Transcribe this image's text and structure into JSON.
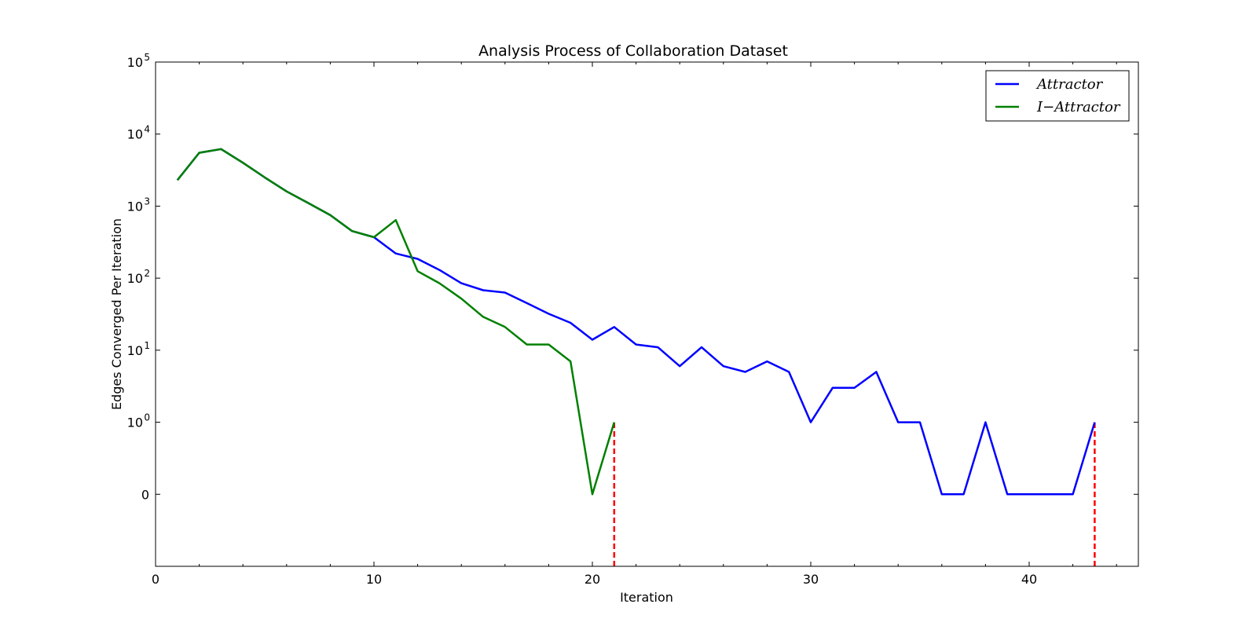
{
  "chart_data": {
    "type": "line",
    "title": "Analysis Process of Collaboration Dataset",
    "xlabel": "Iteration",
    "ylabel": "Edges Converged Per Iteration",
    "xlim": [
      0,
      45
    ],
    "xticks": [
      0,
      10,
      20,
      30,
      40
    ],
    "xtick_labels": [
      "0",
      "10",
      "20",
      "30",
      "40"
    ],
    "yscale": "symlog",
    "ylim": [
      -1,
      100000
    ],
    "yticks": [
      {
        "value": 0,
        "label": "0"
      },
      {
        "value": 1,
        "label": "10",
        "exp": "0"
      },
      {
        "value": 10,
        "label": "10",
        "exp": "1"
      },
      {
        "value": 100,
        "label": "10",
        "exp": "2"
      },
      {
        "value": 1000,
        "label": "10",
        "exp": "3"
      },
      {
        "value": 10000,
        "label": "10",
        "exp": "4"
      },
      {
        "value": 100000,
        "label": "10",
        "exp": "5"
      }
    ],
    "legend_position": "top-right",
    "grid": false,
    "series": [
      {
        "name": "Attractor",
        "color": "#0000ff",
        "x": [
          1,
          2,
          3,
          4,
          5,
          6,
          7,
          8,
          9,
          10,
          11,
          12,
          13,
          14,
          15,
          16,
          17,
          18,
          19,
          20,
          21,
          22,
          23,
          24,
          25,
          26,
          27,
          28,
          29,
          30,
          31,
          32,
          33,
          34,
          35,
          36,
          37,
          38,
          39,
          40,
          41,
          42,
          43
        ],
        "y": [
          2300,
          5500,
          6200,
          4000,
          2500,
          1600,
          1100,
          750,
          450,
          370,
          220,
          185,
          130,
          85,
          68,
          63,
          45,
          32,
          24,
          14,
          21,
          12,
          11,
          6,
          11,
          6,
          5,
          7,
          5,
          1,
          3,
          3,
          5,
          1,
          1,
          0,
          0,
          1,
          0,
          0,
          0,
          0,
          1
        ]
      },
      {
        "name": "I−Attractor",
        "color": "#008000",
        "x": [
          1,
          2,
          3,
          4,
          5,
          6,
          7,
          8,
          9,
          10,
          11,
          12,
          13,
          14,
          15,
          16,
          17,
          18,
          19,
          20,
          21
        ],
        "y": [
          2300,
          5500,
          6200,
          4000,
          2500,
          1600,
          1100,
          750,
          450,
          370,
          640,
          125,
          85,
          52,
          29,
          21,
          12,
          12,
          7,
          0,
          1
        ]
      }
    ],
    "markers": [
      {
        "x": 21,
        "y_from": -1,
        "y_to": 1,
        "color": "#ff0000",
        "style": "dashed"
      },
      {
        "x": 43,
        "y_from": -1,
        "y_to": 1,
        "color": "#ff0000",
        "style": "dashed"
      }
    ]
  }
}
